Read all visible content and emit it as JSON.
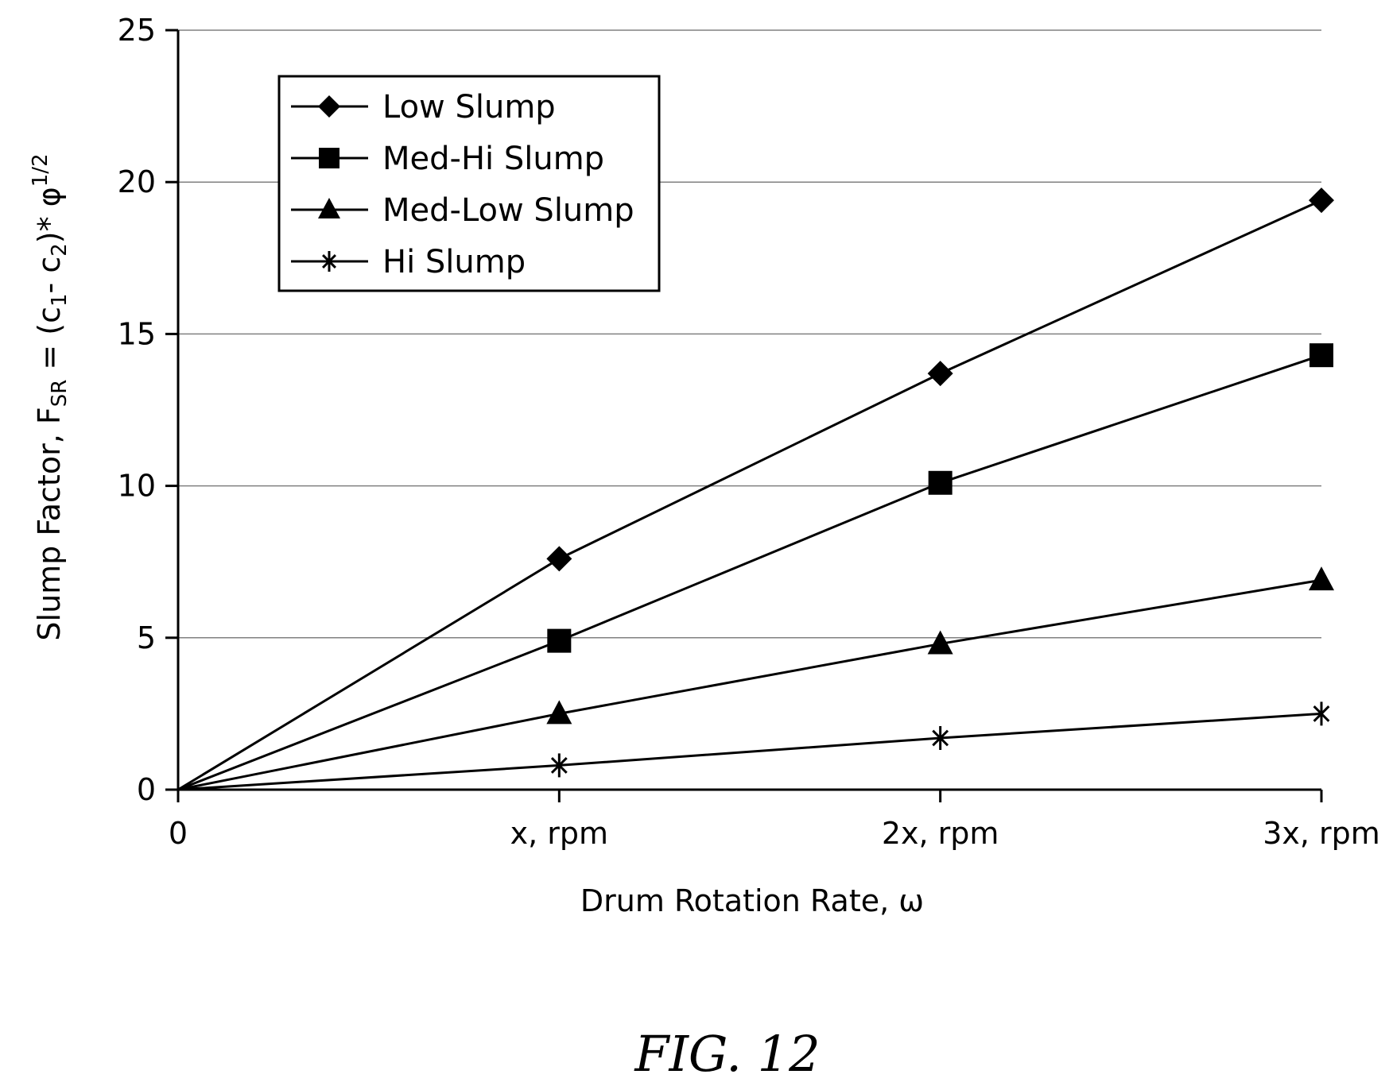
{
  "chart_data": {
    "type": "line",
    "x": [
      0,
      1,
      2,
      3
    ],
    "x_tick_labels": [
      "0",
      "x, rpm",
      "2x, rpm",
      "3x, rpm"
    ],
    "xlabel": "Drum Rotation Rate, ω",
    "ylabel": {
      "prefix": "Slump Factor, F",
      "sub1": "SR",
      "mid1": " = (c",
      "sub2": "1",
      "mid2": "- c",
      "sub3": "2",
      "mid3": ")* φ",
      "sup": "1/2"
    },
    "ylim": [
      0,
      25
    ],
    "y_ticks": [
      0,
      5,
      10,
      15,
      20,
      25
    ],
    "grid": true,
    "legend_position": "top-left",
    "series": [
      {
        "name": "Low Slump",
        "marker": "diamond",
        "values": [
          0,
          7.6,
          13.7,
          19.4
        ]
      },
      {
        "name": "Med-Hi Slump",
        "marker": "square",
        "values": [
          0,
          4.9,
          10.1,
          14.3
        ]
      },
      {
        "name": "Med-Low Slump",
        "marker": "triangle",
        "values": [
          0,
          2.5,
          4.8,
          6.9
        ]
      },
      {
        "name": "Hi Slump",
        "marker": "asterisk",
        "values": [
          0,
          0.8,
          1.7,
          2.5
        ]
      }
    ]
  },
  "caption": "FIG. 12",
  "colors": {
    "line": "#000000",
    "grid": "#808080"
  }
}
